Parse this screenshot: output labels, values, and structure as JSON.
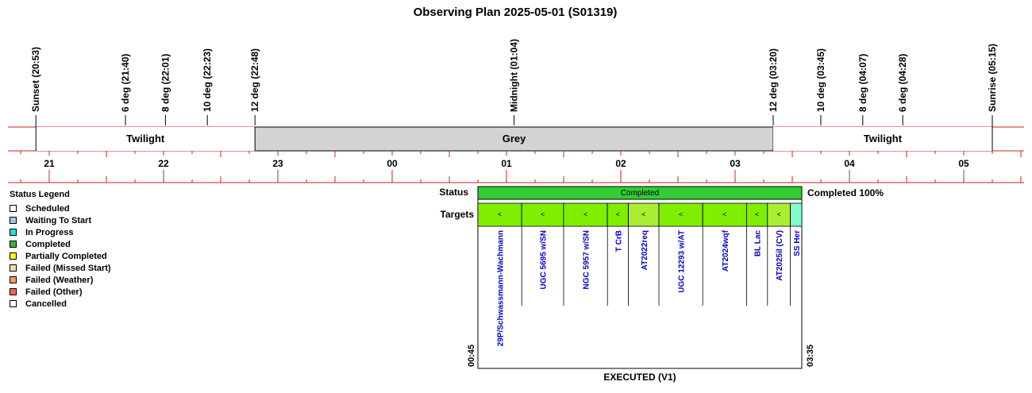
{
  "chart_data": {
    "type": "timeline",
    "title": "Observing Plan 2025-05-01 (S01319)",
    "x_range": [
      "20:40",
      "05:55"
    ],
    "hour_labels": [
      "21",
      "22",
      "23",
      "00",
      "01",
      "02",
      "03",
      "04",
      "05"
    ],
    "events": [
      {
        "label": "Sunset (20:53)",
        "time": "20:53"
      },
      {
        "label": "6 deg (21:40)",
        "time": "21:40"
      },
      {
        "label": "8 deg (22:01)",
        "time": "22:01"
      },
      {
        "label": "10 deg (22:23)",
        "time": "22:23"
      },
      {
        "label": "12 deg (22:48)",
        "time": "22:48"
      },
      {
        "label": "Midnight (01:04)",
        "time": "01:04"
      },
      {
        "label": "12 deg (03:20)",
        "time": "03:20"
      },
      {
        "label": "10 deg (03:45)",
        "time": "03:45"
      },
      {
        "label": "8 deg (04:07)",
        "time": "04:07"
      },
      {
        "label": "6 deg (04:28)",
        "time": "04:28"
      },
      {
        "label": "Sunrise (05:15)",
        "time": "05:15"
      }
    ],
    "sky_bands": [
      {
        "label": "Twilight",
        "start": "20:53",
        "end": "22:48",
        "color": "#ffffff"
      },
      {
        "label": "Grey",
        "start": "22:48",
        "end": "03:20",
        "color": "#d3d3d3"
      },
      {
        "label": "Twilight",
        "start": "03:20",
        "end": "05:15",
        "color": "#ffffff"
      }
    ],
    "status_label": "Status",
    "targets_label": "Targets",
    "block": {
      "start": "00:45",
      "end": "03:35",
      "start_label": "00:45",
      "end_label": "03:35",
      "status": "Completed",
      "status_color": "#33cc33",
      "completion": "Completed 100%",
      "footer": "EXECUTED (V1)"
    },
    "targets": [
      {
        "name": "29P/Schwassmann-Wachmann",
        "start": "00:45",
        "end": "01:08",
        "color": "#80ee00"
      },
      {
        "name": "UGC 5695 w/SN",
        "start": "01:08",
        "end": "01:30",
        "color": "#80ee00"
      },
      {
        "name": "NGC 5957 w/SN",
        "start": "01:30",
        "end": "01:53",
        "color": "#80ee00"
      },
      {
        "name": "T CrB",
        "start": "01:53",
        "end": "02:04",
        "color": "#80ee00"
      },
      {
        "name": "AT2022req",
        "start": "02:04",
        "end": "02:20",
        "color": "#aaee33"
      },
      {
        "name": "UGC 12293 w/AT",
        "start": "02:20",
        "end": "02:43",
        "color": "#80ee00"
      },
      {
        "name": "AT2024wqf",
        "start": "02:43",
        "end": "03:06",
        "color": "#80ee00"
      },
      {
        "name": "BL Lac",
        "start": "03:06",
        "end": "03:17",
        "color": "#80ee00"
      },
      {
        "name": "AT2025il (CV)",
        "start": "03:17",
        "end": "03:29",
        "color": "#aaee33"
      },
      {
        "name": "SS Her",
        "start": "03:29",
        "end": "03:35",
        "color": "#80ffcc"
      }
    ],
    "target_marker": "<",
    "legend_title": "Status Legend",
    "legend": [
      {
        "label": "Scheduled",
        "color": "#ffffff"
      },
      {
        "label": "Waiting To Start",
        "color": "#99ccdd"
      },
      {
        "label": "In Progress",
        "color": "#22dddd"
      },
      {
        "label": "Completed",
        "color": "#33bb33"
      },
      {
        "label": "Partially Completed",
        "color": "#ffff00"
      },
      {
        "label": "Failed (Missed Start)",
        "color": "#ffddaa"
      },
      {
        "label": "Failed (Weather)",
        "color": "#ff9966"
      },
      {
        "label": "Failed (Other)",
        "color": "#ff6655"
      },
      {
        "label": "Cancelled",
        "color": "#ffffff"
      }
    ]
  }
}
